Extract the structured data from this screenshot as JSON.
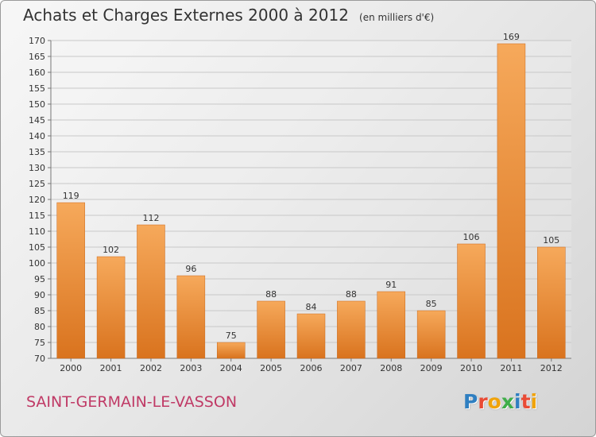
{
  "title": "Achats et Charges Externes 2000 à 2012",
  "unit": "(en milliers d'€)",
  "place_name": "SAINT-GERMAIN-LE-VASSON",
  "logo": {
    "text": "Proxiti",
    "colors": [
      "#2f7fc1",
      "#e94b35",
      "#f0a30a",
      "#3fae49",
      "#2f7fc1",
      "#e94b35",
      "#f0a30a"
    ]
  },
  "colors": {
    "bar_top": "#f6a95b",
    "bar_bottom": "#d9731e",
    "grid": "#c8c8c8",
    "text": "#333333",
    "place": "#c03a66"
  },
  "chart_data": {
    "type": "bar",
    "title": "Achats et Charges Externes 2000 à 2012",
    "subtitle": "(en milliers d'€)",
    "categories": [
      "2000",
      "2001",
      "2002",
      "2003",
      "2004",
      "2005",
      "2006",
      "2007",
      "2008",
      "2009",
      "2010",
      "2011",
      "2012"
    ],
    "values": [
      119,
      102,
      112,
      96,
      75,
      88,
      84,
      88,
      91,
      85,
      106,
      169,
      105
    ],
    "ylim": [
      70,
      170
    ],
    "yticks": [
      70,
      75,
      80,
      85,
      90,
      95,
      100,
      105,
      110,
      115,
      120,
      125,
      130,
      135,
      140,
      145,
      150,
      155,
      160,
      165,
      170
    ],
    "grid": true,
    "legend": "none"
  }
}
